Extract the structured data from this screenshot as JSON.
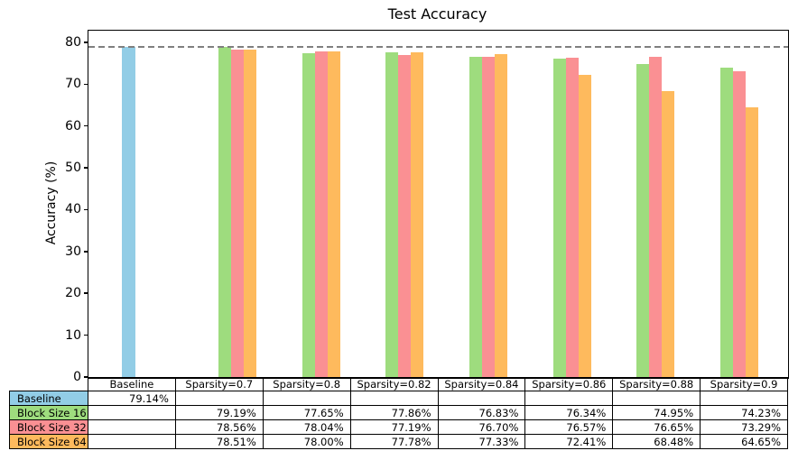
{
  "chart_data": {
    "type": "bar",
    "title": "Test Accuracy",
    "ylabel": "Accuracy (%)",
    "xlabel": "",
    "categories": [
      "Baseline",
      "Sparsity=0.7",
      "Sparsity=0.8",
      "Sparsity=0.82",
      "Sparsity=0.84",
      "Sparsity=0.86",
      "Sparsity=0.88",
      "Sparsity=0.9"
    ],
    "series": [
      {
        "name": "Baseline",
        "color": "#92CDE6",
        "values": [
          79.14,
          null,
          null,
          null,
          null,
          null,
          null,
          null
        ]
      },
      {
        "name": "Block Size 16",
        "color": "#9EDC7E",
        "values": [
          null,
          79.19,
          77.65,
          77.86,
          76.83,
          76.34,
          74.95,
          74.23
        ]
      },
      {
        "name": "Block Size 32",
        "color": "#FA9093",
        "values": [
          null,
          78.56,
          78.04,
          77.19,
          76.7,
          76.57,
          76.65,
          73.29
        ]
      },
      {
        "name": "Block Size 64",
        "color": "#FEBA5D",
        "values": [
          null,
          78.51,
          78.0,
          77.78,
          77.33,
          72.41,
          68.48,
          64.65
        ]
      }
    ],
    "baseline_line": {
      "value": 79.14,
      "style": "dashed",
      "color": "#7f7f7f"
    },
    "ylim": [
      0,
      83
    ],
    "yticks": [
      0,
      10,
      20,
      30,
      40,
      50,
      60,
      70,
      80
    ],
    "grid": false,
    "legend_position": "table-row-labels"
  },
  "table": {
    "col_headers": [
      "Baseline",
      "Sparsity=0.7",
      "Sparsity=0.8",
      "Sparsity=0.82",
      "Sparsity=0.84",
      "Sparsity=0.86",
      "Sparsity=0.88",
      "Sparsity=0.9"
    ],
    "rows": [
      {
        "label": "Baseline",
        "color": "#92CDE6",
        "cells": [
          "79.14%",
          "",
          "",
          "",
          "",
          "",
          "",
          ""
        ]
      },
      {
        "label": "Block Size 16",
        "color": "#9EDC7E",
        "cells": [
          "",
          "79.19%",
          "77.65%",
          "77.86%",
          "76.83%",
          "76.34%",
          "74.95%",
          "74.23%"
        ]
      },
      {
        "label": "Block Size 32",
        "color": "#FA9093",
        "cells": [
          "",
          "78.56%",
          "78.04%",
          "77.19%",
          "76.70%",
          "76.57%",
          "76.65%",
          "73.29%"
        ]
      },
      {
        "label": "Block Size 64",
        "color": "#FEBA5D",
        "cells": [
          "",
          "78.51%",
          "78.00%",
          "77.78%",
          "77.33%",
          "72.41%",
          "68.48%",
          "64.65%"
        ]
      }
    ]
  }
}
